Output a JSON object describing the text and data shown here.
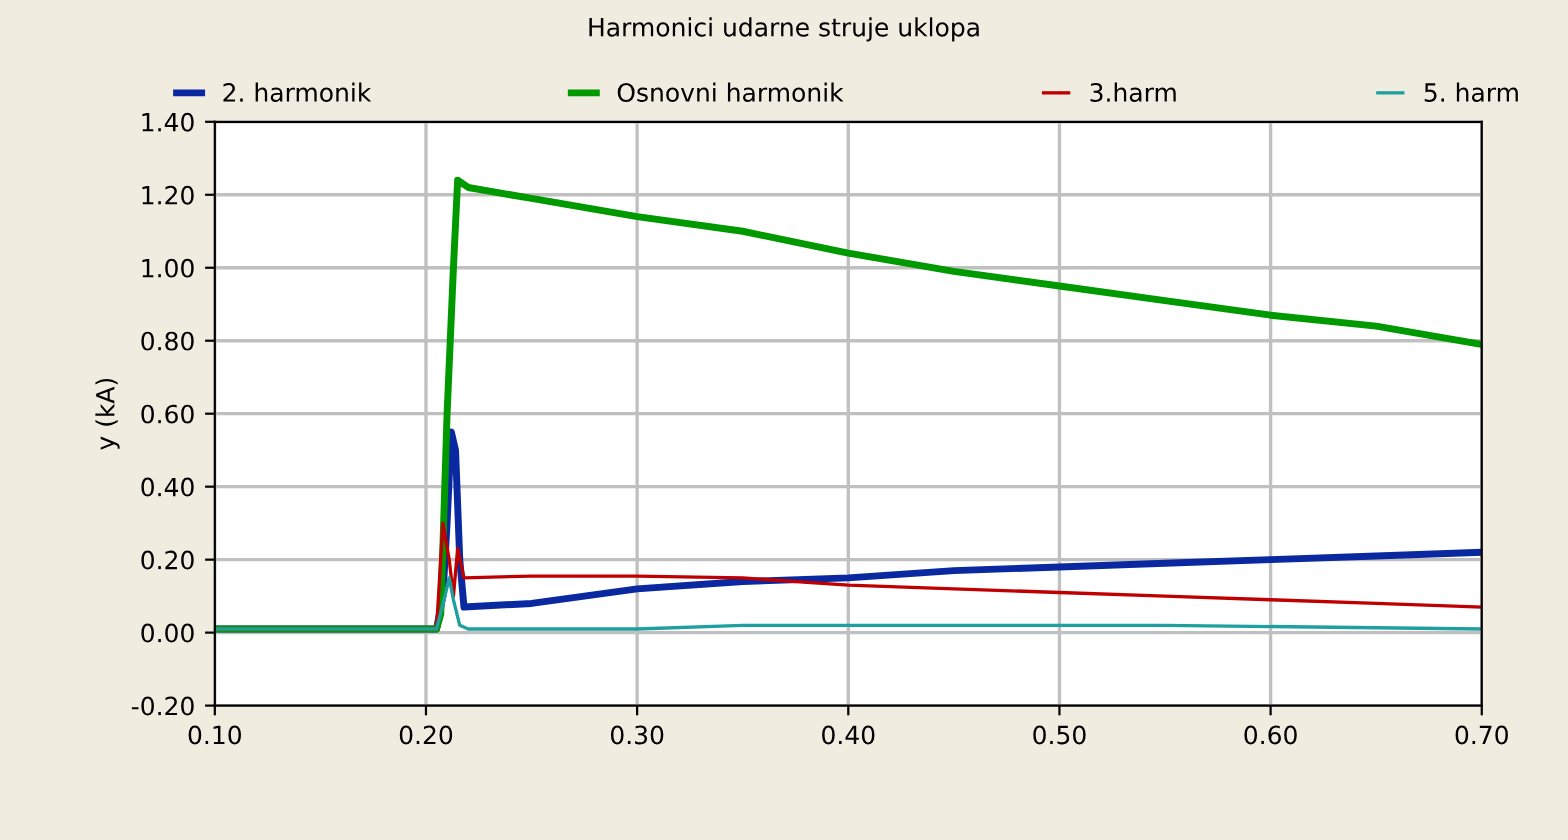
{
  "chart_data": {
    "type": "line",
    "title": "Harmonici udarne struje uklopa",
    "ylabel": "y (kA)",
    "xlim": [
      0.1,
      0.7
    ],
    "ylim": [
      -0.2,
      1.4
    ],
    "xticks": [
      {
        "value": 0.1,
        "label": "0.10"
      },
      {
        "value": 0.2,
        "label": "0.20"
      },
      {
        "value": 0.3,
        "label": "0.30"
      },
      {
        "value": 0.4,
        "label": "0.40"
      },
      {
        "value": 0.5,
        "label": "0.50"
      },
      {
        "value": 0.6,
        "label": "0.60"
      },
      {
        "value": 0.7,
        "label": "0.70"
      }
    ],
    "yticks": [
      {
        "value": -0.2,
        "label": "-0.20"
      },
      {
        "value": 0,
        "label": "0.00"
      },
      {
        "value": 0.2,
        "label": "0.20"
      },
      {
        "value": 0.4,
        "label": "0.40"
      },
      {
        "value": 0.6,
        "label": "0.60"
      },
      {
        "value": 0.8,
        "label": "0.80"
      },
      {
        "value": 1.0,
        "label": "1.00"
      },
      {
        "value": 1.2,
        "label": "1.20"
      },
      {
        "value": 1.4,
        "label": "1.40"
      }
    ],
    "grid": true,
    "legend": "top",
    "marker": "none",
    "line_style": "solid",
    "series": [
      {
        "name": "2. harmonik",
        "color": "#0a28a0",
        "x": [
          0.1,
          0.205,
          0.208,
          0.21,
          0.212,
          0.214,
          0.216,
          0.218,
          0.25,
          0.3,
          0.35,
          0.4,
          0.45,
          0.5,
          0.55,
          0.6,
          0.65,
          0.7
        ],
        "values": [
          0.01,
          0.01,
          0.1,
          0.3,
          0.55,
          0.5,
          0.2,
          0.07,
          0.08,
          0.12,
          0.14,
          0.15,
          0.17,
          0.18,
          0.19,
          0.2,
          0.21,
          0.22
        ]
      },
      {
        "name": "Osnovni harmonik",
        "color": "#009900",
        "x": [
          0.1,
          0.205,
          0.207,
          0.21,
          0.213,
          0.215,
          0.22,
          0.25,
          0.3,
          0.35,
          0.4,
          0.45,
          0.5,
          0.55,
          0.6,
          0.65,
          0.7
        ],
        "values": [
          0.01,
          0.01,
          0.05,
          0.6,
          1.0,
          1.24,
          1.22,
          1.19,
          1.14,
          1.1,
          1.04,
          0.99,
          0.95,
          0.91,
          0.87,
          0.84,
          0.79
        ]
      },
      {
        "name": "3.harm",
        "color": "#c00000",
        "x": [
          0.1,
          0.205,
          0.208,
          0.211,
          0.213,
          0.215,
          0.218,
          0.25,
          0.3,
          0.35,
          0.4,
          0.45,
          0.5,
          0.55,
          0.6,
          0.65,
          0.7
        ],
        "values": [
          0.01,
          0.01,
          0.3,
          0.2,
          0.1,
          0.23,
          0.15,
          0.155,
          0.155,
          0.15,
          0.13,
          0.12,
          0.11,
          0.1,
          0.09,
          0.08,
          0.07
        ]
      },
      {
        "name": "5. harm",
        "color": "#1fa0a0",
        "x": [
          0.1,
          0.205,
          0.209,
          0.211,
          0.213,
          0.216,
          0.22,
          0.3,
          0.35,
          0.45,
          0.55,
          0.7
        ],
        "values": [
          0.01,
          0.01,
          0.1,
          0.15,
          0.09,
          0.02,
          0.01,
          0.01,
          0.02,
          0.02,
          0.02,
          0.01
        ]
      }
    ]
  }
}
